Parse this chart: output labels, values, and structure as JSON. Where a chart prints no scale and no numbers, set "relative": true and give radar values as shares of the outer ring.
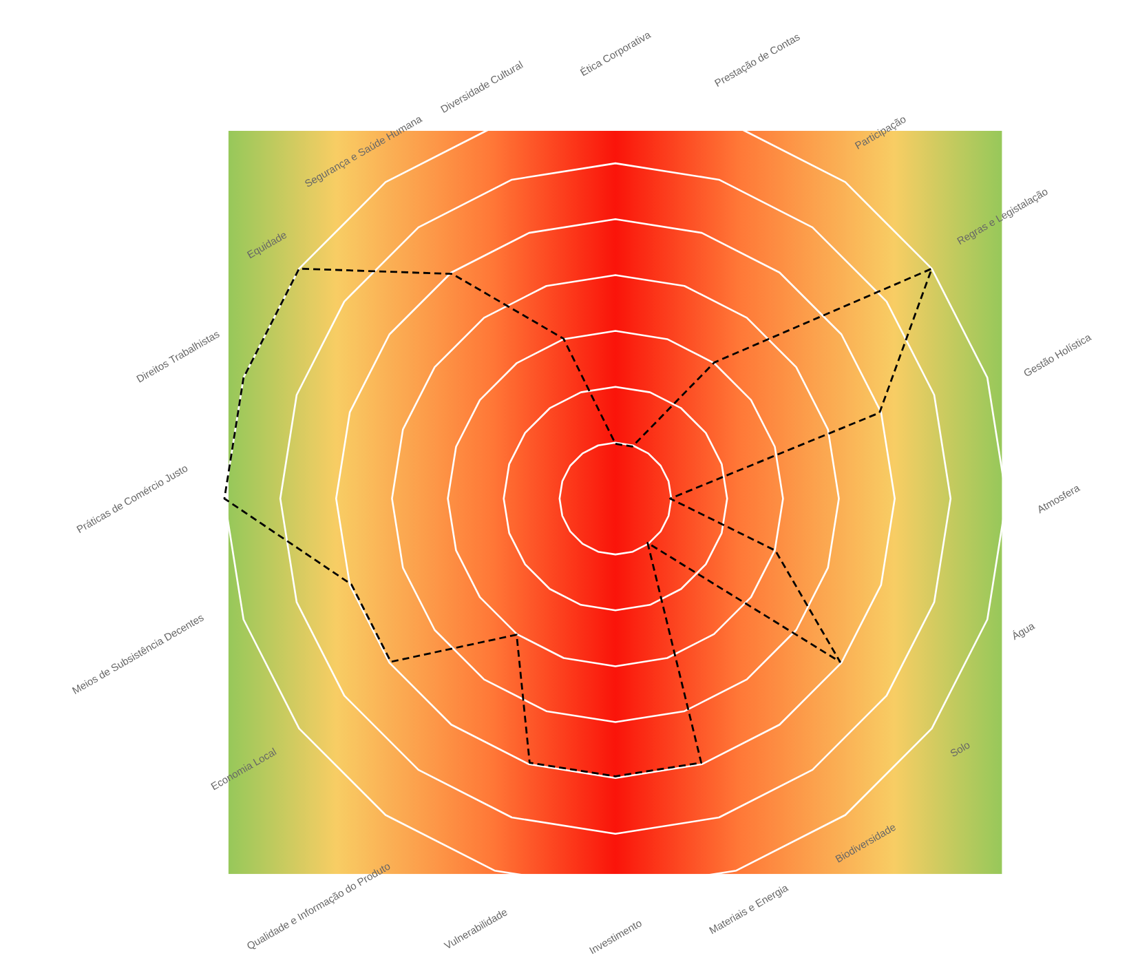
{
  "chart_data": {
    "type": "radar",
    "relative": true,
    "grid": true,
    "marker": "none",
    "line_style": "dashed",
    "categories": [
      "Ética Corporativa",
      "Prestação de Contas",
      "Participação",
      "Regras e Legistalação",
      "Gestão Holística",
      "Atmosfera",
      "Água",
      "Solo",
      "Biodiversidade",
      "Materiais e Energia",
      "Investimento",
      "Vulnerabilidade",
      "Qualidade e Informação do Produto",
      "Economia Local",
      "Meios de Subsistência Decentes",
      "Práticas de Comércio Justo",
      "Direitos Trabalhistas",
      "Equidade",
      "Segurança e Saúde Humana",
      "Diversidade Cultural"
    ],
    "series": [
      {
        "color": "#000000",
        "values": [
          0.14,
          0.14,
          0.43,
          1,
          0.71,
          0.14,
          0.43,
          0.71,
          0.14,
          0.71,
          0.71,
          0.71,
          0.43,
          0.71,
          0.71,
          1,
          1,
          1,
          0.71,
          0.43
        ]
      }
    ]
  }
}
